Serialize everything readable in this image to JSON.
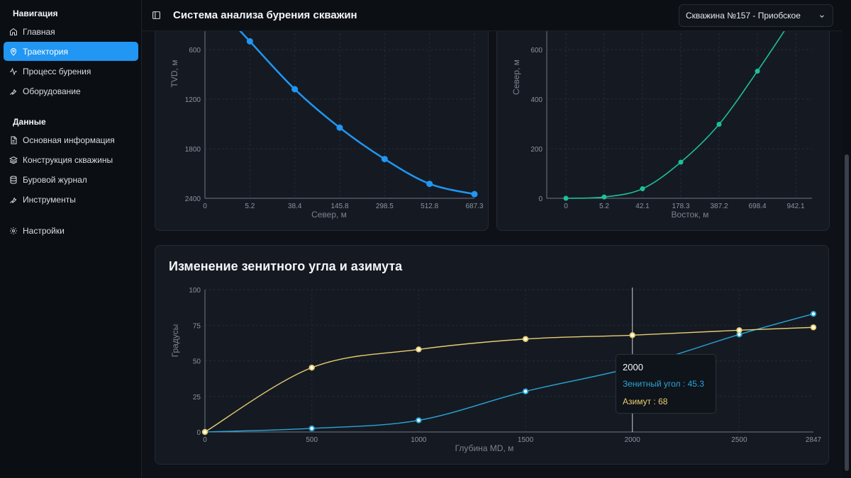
{
  "sidebar": {
    "groups": [
      {
        "title": "Навигация",
        "items": [
          {
            "label": "Главная",
            "icon": "home-icon"
          },
          {
            "label": "Траектория",
            "icon": "map-pin-icon",
            "active": true
          },
          {
            "label": "Процесс бурения",
            "icon": "activity-icon"
          },
          {
            "label": "Оборудование",
            "icon": "wrench-icon"
          }
        ]
      },
      {
        "title": "Данные",
        "items": [
          {
            "label": "Основная информация",
            "icon": "file-icon"
          },
          {
            "label": "Конструкция скважины",
            "icon": "layers-icon"
          },
          {
            "label": "Буровой журнал",
            "icon": "database-icon"
          },
          {
            "label": "Инструменты",
            "icon": "wrench-icon"
          }
        ]
      }
    ],
    "settings_label": "Настройки"
  },
  "header": {
    "title": "Система анализа бурения скважин",
    "well_select": "Скважина №157 - Приобское"
  },
  "colors": {
    "accent": "#2196f3",
    "teal": "#1fbf9a",
    "zenith": "#2aa6d8",
    "azimuth": "#e8cd72"
  },
  "chart_data": [
    {
      "type": "line",
      "xlabel": "Север, м",
      "ylabel": "TVD, м",
      "categories": [
        "0",
        "5.2",
        "38.4",
        "145.8",
        "298.5",
        "512.8",
        "687.3"
      ],
      "y_ticks": [
        600,
        1200,
        1800,
        2400
      ],
      "y_inverted": true,
      "series": [
        {
          "values": [
            null,
            500,
            1080,
            1545,
            1925,
            2225,
            2350
          ]
        }
      ]
    },
    {
      "type": "line",
      "xlabel": "Восток, м",
      "ylabel": "Север, м",
      "categories": [
        "0",
        "5.2",
        "42.1",
        "178.3",
        "387.2",
        "698.4",
        "942.1"
      ],
      "y_ticks": [
        0,
        200,
        400,
        600
      ],
      "series": [
        {
          "values": [
            0,
            5.2,
            38.4,
            145.8,
            298.5,
            512.8,
            687.3
          ]
        }
      ]
    },
    {
      "type": "line",
      "title": "Изменение зенитного угла и азимута",
      "xlabel": "Глубина MD, м",
      "ylabel": "Градусы",
      "x_ticks": [
        0,
        500,
        1000,
        1500,
        2000,
        2500,
        2847
      ],
      "y_ticks": [
        0,
        25,
        50,
        75,
        100
      ],
      "ylim": [
        0,
        100
      ],
      "series": [
        {
          "name": "Зенитный угол",
          "x": [
            0,
            500,
            1000,
            1500,
            2000,
            2500,
            2847
          ],
          "values": [
            0,
            2.5,
            8.2,
            28.5,
            45.3,
            68.5,
            83
          ]
        },
        {
          "name": "Азимут",
          "x": [
            0,
            500,
            1000,
            1500,
            2000,
            2500,
            2847
          ],
          "values": [
            0,
            45.2,
            58,
            65.3,
            68,
            71.5,
            73.5
          ]
        }
      ],
      "tooltip": {
        "x": "2000",
        "zenith": "Зенитный угол : 45.3",
        "azimuth": "Азимут : 68"
      }
    }
  ]
}
